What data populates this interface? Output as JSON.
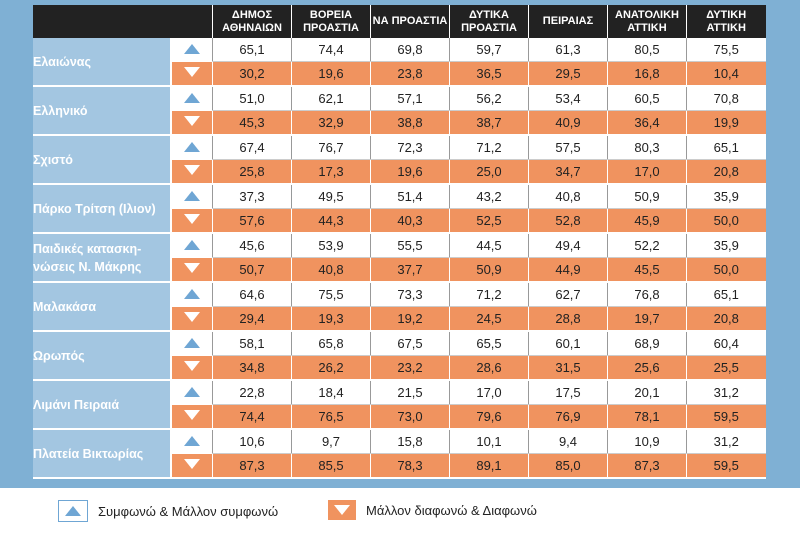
{
  "chart_data": {
    "type": "table",
    "columns": [
      "ΔΗΜΟΣ ΑΘΗΝΑΙΩΝ",
      "ΒΟΡΕΙΑ ΠΡΟΑΣΤΙΑ",
      "ΝΑ ΠΡΟΑΣΤΙΑ",
      "ΔΥΤΙΚΑ ΠΡΟΑΣΤΙΑ",
      "ΠΕΙΡΑΙΑΣ",
      "ΑΝΑΤΟΛΙΚΗ ΑΤΤΙΚΗ",
      "ΔΥΤΙΚΗ ΑΤΤΙΚΗ"
    ],
    "rows": [
      {
        "label": "Ελαιώνας",
        "agree": [
          "65,1",
          "74,4",
          "69,8",
          "59,7",
          "61,3",
          "80,5",
          "75,5"
        ],
        "disagree": [
          "30,2",
          "19,6",
          "23,8",
          "36,5",
          "29,5",
          "16,8",
          "10,4"
        ]
      },
      {
        "label": "Ελληνικό",
        "agree": [
          "51,0",
          "62,1",
          "57,1",
          "56,2",
          "53,4",
          "60,5",
          "70,8"
        ],
        "disagree": [
          "45,3",
          "32,9",
          "38,8",
          "38,7",
          "40,9",
          "36,4",
          "19,9"
        ]
      },
      {
        "label": "Σχιστό",
        "agree": [
          "67,4",
          "76,7",
          "72,3",
          "71,2",
          "57,5",
          "80,3",
          "65,1"
        ],
        "disagree": [
          "25,8",
          "17,3",
          "19,6",
          "25,0",
          "34,7",
          "17,0",
          "20,8"
        ]
      },
      {
        "label": "Πάρκο Τρίτση (Ιλιον)",
        "agree": [
          "37,3",
          "49,5",
          "51,4",
          "43,2",
          "40,8",
          "50,9",
          "35,9"
        ],
        "disagree": [
          "57,6",
          "44,3",
          "40,3",
          "52,5",
          "52,8",
          "45,9",
          "50,0"
        ]
      },
      {
        "label": "Παιδικές κατασκη- νώσεις Ν. Μάκρης",
        "agree": [
          "45,6",
          "53,9",
          "55,5",
          "44,5",
          "49,4",
          "52,2",
          "35,9"
        ],
        "disagree": [
          "50,7",
          "40,8",
          "37,7",
          "50,9",
          "44,9",
          "45,5",
          "50,0"
        ]
      },
      {
        "label": "Μαλακάσα",
        "agree": [
          "64,6",
          "75,5",
          "73,3",
          "71,2",
          "62,7",
          "76,8",
          "65,1"
        ],
        "disagree": [
          "29,4",
          "19,3",
          "19,2",
          "24,5",
          "28,8",
          "19,7",
          "20,8"
        ]
      },
      {
        "label": "Ωρωπός",
        "agree": [
          "58,1",
          "65,8",
          "67,5",
          "65,5",
          "60,1",
          "68,9",
          "60,4"
        ],
        "disagree": [
          "34,8",
          "26,2",
          "23,2",
          "28,6",
          "31,5",
          "25,6",
          "25,5"
        ]
      },
      {
        "label": "Λιμάνι Πειραιά",
        "agree": [
          "22,8",
          "18,4",
          "21,5",
          "17,0",
          "17,5",
          "20,1",
          "31,2"
        ],
        "disagree": [
          "74,4",
          "76,5",
          "73,0",
          "79,6",
          "76,9",
          "78,1",
          "59,5"
        ]
      },
      {
        "label": "Πλατεία Βικτωρίας",
        "agree": [
          "10,6",
          "9,7",
          "15,8",
          "10,1",
          "9,4",
          "10,9",
          "31,2"
        ],
        "disagree": [
          "87,3",
          "85,5",
          "78,3",
          "89,1",
          "85,0",
          "87,3",
          "59,5"
        ]
      }
    ],
    "legend": [
      {
        "name": "Συμφωνώ & Μάλλον συμφωνώ",
        "icon": "arrow-up-icon",
        "color": "#6fa6d4"
      },
      {
        "name": "Μάλλον διαφωνώ & Διαφωνώ",
        "icon": "arrow-down-icon",
        "color": "#f0935f"
      }
    ]
  },
  "colors": {
    "background": "#7fb0d4",
    "header": "#222222",
    "label_cell": "#a3c6e1",
    "disagree_row": "#f0935f",
    "agree_arrow": "#6fa6d4"
  }
}
